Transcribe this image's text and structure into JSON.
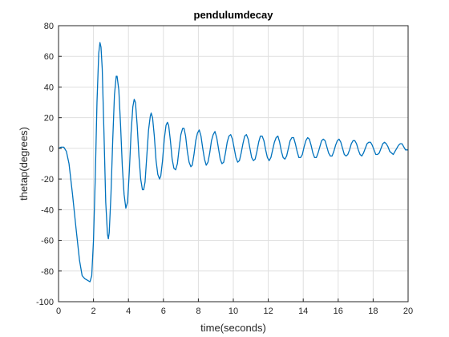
{
  "chart_data": {
    "type": "line",
    "title": "pendulumdecay",
    "xlabel": "time(seconds)",
    "ylabel": "thetap(degrees)",
    "xlim": [
      0,
      20
    ],
    "ylim": [
      -100,
      80
    ],
    "xticks": [
      0,
      2,
      4,
      6,
      8,
      10,
      12,
      14,
      16,
      18,
      20
    ],
    "yticks": [
      -100,
      -80,
      -60,
      -40,
      -20,
      0,
      20,
      40,
      60,
      80
    ],
    "grid": true,
    "line_color": "#0072bd",
    "series": [
      {
        "points": [
          [
            0,
            0
          ],
          [
            0.15,
            0.8
          ],
          [
            0.3,
            0.8
          ],
          [
            0.45,
            -2
          ],
          [
            0.6,
            -10
          ],
          [
            0.8,
            -30
          ],
          [
            1.0,
            -52
          ],
          [
            1.2,
            -73
          ],
          [
            1.35,
            -83
          ],
          [
            1.5,
            -85
          ],
          [
            1.65,
            -86
          ],
          [
            1.8,
            -87
          ],
          [
            1.9,
            -83
          ],
          [
            2.0,
            -60
          ],
          [
            2.1,
            -20
          ],
          [
            2.2,
            30
          ],
          [
            2.3,
            62
          ],
          [
            2.37,
            69
          ],
          [
            2.43,
            66
          ],
          [
            2.5,
            52
          ],
          [
            2.6,
            10
          ],
          [
            2.7,
            -35
          ],
          [
            2.8,
            -56
          ],
          [
            2.85,
            -59
          ],
          [
            2.9,
            -55
          ],
          [
            3.0,
            -30
          ],
          [
            3.1,
            5
          ],
          [
            3.2,
            35
          ],
          [
            3.3,
            47
          ],
          [
            3.35,
            47
          ],
          [
            3.45,
            38
          ],
          [
            3.55,
            15
          ],
          [
            3.65,
            -12
          ],
          [
            3.75,
            -30
          ],
          [
            3.85,
            -39
          ],
          [
            3.95,
            -35
          ],
          [
            4.05,
            -15
          ],
          [
            4.15,
            10
          ],
          [
            4.25,
            27
          ],
          [
            4.33,
            32
          ],
          [
            4.4,
            30
          ],
          [
            4.5,
            15
          ],
          [
            4.6,
            -5
          ],
          [
            4.7,
            -20
          ],
          [
            4.8,
            -27
          ],
          [
            4.87,
            -27
          ],
          [
            4.95,
            -22
          ],
          [
            5.05,
            -5
          ],
          [
            5.15,
            12
          ],
          [
            5.25,
            21
          ],
          [
            5.3,
            23
          ],
          [
            5.38,
            20
          ],
          [
            5.48,
            8
          ],
          [
            5.58,
            -8
          ],
          [
            5.68,
            -17
          ],
          [
            5.78,
            -20
          ],
          [
            5.85,
            -18
          ],
          [
            5.95,
            -8
          ],
          [
            6.05,
            6
          ],
          [
            6.15,
            15
          ],
          [
            6.23,
            17
          ],
          [
            6.3,
            15
          ],
          [
            6.4,
            5
          ],
          [
            6.5,
            -7
          ],
          [
            6.6,
            -13
          ],
          [
            6.7,
            -14
          ],
          [
            6.8,
            -10
          ],
          [
            6.9,
            0
          ],
          [
            7.0,
            9
          ],
          [
            7.1,
            13
          ],
          [
            7.18,
            13
          ],
          [
            7.27,
            8
          ],
          [
            7.37,
            -2
          ],
          [
            7.47,
            -9
          ],
          [
            7.57,
            -12
          ],
          [
            7.65,
            -11
          ],
          [
            7.75,
            -4
          ],
          [
            7.85,
            5
          ],
          [
            7.95,
            10
          ],
          [
            8.05,
            12
          ],
          [
            8.15,
            8
          ],
          [
            8.25,
            0
          ],
          [
            8.35,
            -7
          ],
          [
            8.45,
            -11
          ],
          [
            8.55,
            -9
          ],
          [
            8.65,
            -3
          ],
          [
            8.75,
            5
          ],
          [
            8.85,
            9
          ],
          [
            8.95,
            11
          ],
          [
            9.05,
            7
          ],
          [
            9.15,
            0
          ],
          [
            9.25,
            -7
          ],
          [
            9.35,
            -10
          ],
          [
            9.45,
            -9
          ],
          [
            9.55,
            -3
          ],
          [
            9.65,
            4
          ],
          [
            9.75,
            8
          ],
          [
            9.85,
            9
          ],
          [
            9.95,
            6
          ],
          [
            10.05,
            0
          ],
          [
            10.15,
            -6
          ],
          [
            10.25,
            -9
          ],
          [
            10.35,
            -8
          ],
          [
            10.45,
            -3
          ],
          [
            10.55,
            3
          ],
          [
            10.65,
            8
          ],
          [
            10.75,
            9
          ],
          [
            10.85,
            6
          ],
          [
            10.95,
            0
          ],
          [
            11.05,
            -6
          ],
          [
            11.15,
            -8
          ],
          [
            11.25,
            -7
          ],
          [
            11.35,
            -2
          ],
          [
            11.45,
            4
          ],
          [
            11.55,
            8
          ],
          [
            11.65,
            8
          ],
          [
            11.75,
            5
          ],
          [
            11.85,
            -1
          ],
          [
            11.95,
            -6
          ],
          [
            12.05,
            -8
          ],
          [
            12.15,
            -6
          ],
          [
            12.25,
            -1
          ],
          [
            12.35,
            4
          ],
          [
            12.45,
            7
          ],
          [
            12.55,
            8
          ],
          [
            12.65,
            4
          ],
          [
            12.75,
            -2
          ],
          [
            12.85,
            -6
          ],
          [
            12.95,
            -7
          ],
          [
            13.05,
            -5
          ],
          [
            13.15,
            0
          ],
          [
            13.25,
            5
          ],
          [
            13.35,
            7
          ],
          [
            13.45,
            7
          ],
          [
            13.55,
            3
          ],
          [
            13.65,
            -2
          ],
          [
            13.75,
            -6
          ],
          [
            13.85,
            -6
          ],
          [
            13.95,
            -4
          ],
          [
            14.05,
            1
          ],
          [
            14.15,
            5
          ],
          [
            14.25,
            7
          ],
          [
            14.35,
            6
          ],
          [
            14.45,
            2
          ],
          [
            14.55,
            -3
          ],
          [
            14.65,
            -6
          ],
          [
            14.75,
            -6
          ],
          [
            14.85,
            -3
          ],
          [
            14.95,
            1
          ],
          [
            15.05,
            5
          ],
          [
            15.15,
            6
          ],
          [
            15.25,
            5
          ],
          [
            15.35,
            1
          ],
          [
            15.45,
            -3
          ],
          [
            15.55,
            -5
          ],
          [
            15.65,
            -5
          ],
          [
            15.75,
            -2
          ],
          [
            15.85,
            2
          ],
          [
            15.95,
            5
          ],
          [
            16.05,
            6
          ],
          [
            16.15,
            4
          ],
          [
            16.25,
            0
          ],
          [
            16.35,
            -4
          ],
          [
            16.45,
            -5
          ],
          [
            16.55,
            -4
          ],
          [
            16.65,
            -1
          ],
          [
            16.75,
            3
          ],
          [
            16.85,
            5
          ],
          [
            16.95,
            5
          ],
          [
            17.05,
            3
          ],
          [
            17.15,
            -1
          ],
          [
            17.25,
            -4
          ],
          [
            17.35,
            -5
          ],
          [
            17.45,
            -3
          ],
          [
            17.55,
            0
          ],
          [
            17.65,
            3
          ],
          [
            17.75,
            4
          ],
          [
            17.85,
            4
          ],
          [
            17.95,
            2
          ],
          [
            18.05,
            -1
          ],
          [
            18.15,
            -4
          ],
          [
            18.25,
            -4
          ],
          [
            18.35,
            -3
          ],
          [
            18.45,
            0
          ],
          [
            18.55,
            3
          ],
          [
            18.65,
            4
          ],
          [
            18.75,
            3
          ],
          [
            18.85,
            1
          ],
          [
            18.95,
            -2
          ],
          [
            19.05,
            -3
          ],
          [
            19.15,
            -4
          ],
          [
            19.25,
            -2
          ],
          [
            19.35,
            0
          ],
          [
            19.45,
            2
          ],
          [
            19.55,
            3
          ],
          [
            19.65,
            3
          ],
          [
            19.75,
            1
          ],
          [
            19.85,
            -1
          ],
          [
            19.95,
            -1
          ],
          [
            20,
            -1
          ]
        ]
      }
    ]
  }
}
